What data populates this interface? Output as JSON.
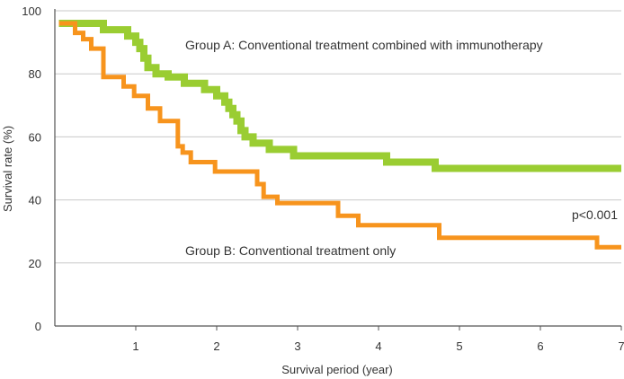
{
  "chart_data": {
    "type": "line",
    "step": true,
    "xlabel": "Survival period (year)",
    "ylabel": "Survival rate (%)",
    "xlim": [
      0,
      7
    ],
    "ylim": [
      0,
      100
    ],
    "xticks": [
      1,
      2,
      3,
      4,
      5,
      6,
      7
    ],
    "yticks": [
      0,
      20,
      40,
      60,
      80,
      100
    ],
    "grid": "horizontal",
    "annotations": [
      "Group A: Conventional treatment combined with immunotherapy",
      "Group B: Conventional treatment only",
      "p<0.001"
    ],
    "series": [
      {
        "name": "Group A: Conventional treatment combined with immunotherapy",
        "color": "#9ACD32",
        "x": [
          0.05,
          0.6,
          0.9,
          1.0,
          1.05,
          1.1,
          1.15,
          1.25,
          1.4,
          1.6,
          1.85,
          2.0,
          2.1,
          2.15,
          2.2,
          2.25,
          2.3,
          2.35,
          2.45,
          2.65,
          2.95,
          4.1,
          4.7,
          7.0
        ],
        "y": [
          96,
          94,
          92,
          90,
          88,
          85,
          82,
          80,
          79,
          77,
          75,
          73,
          71,
          69,
          67,
          65,
          62,
          60,
          58,
          56,
          54,
          52,
          50,
          50
        ]
      },
      {
        "name": "Group B: Conventional treatment only",
        "color": "#F7941D",
        "x": [
          0.05,
          0.25,
          0.35,
          0.45,
          0.6,
          0.85,
          0.98,
          1.15,
          1.3,
          1.52,
          1.58,
          1.68,
          1.98,
          2.5,
          2.58,
          2.75,
          3.5,
          3.75,
          4.75,
          6.7,
          7.0
        ],
        "y": [
          96,
          93,
          91,
          88,
          79,
          76,
          73,
          69,
          65,
          57,
          55,
          52,
          49,
          45,
          41,
          39,
          35,
          32,
          28,
          25,
          25
        ]
      }
    ]
  }
}
